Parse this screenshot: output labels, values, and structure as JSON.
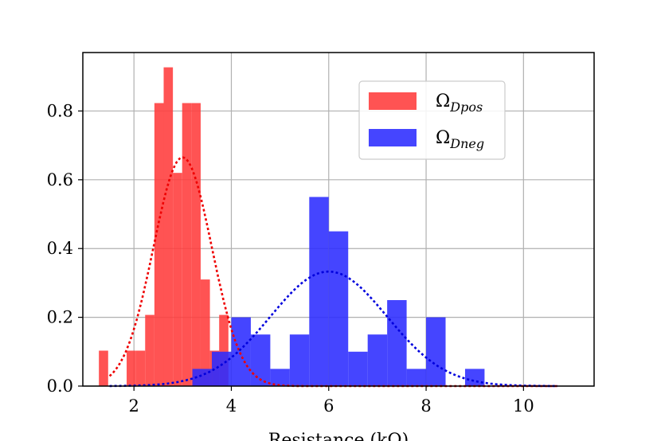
{
  "chart_data": {
    "type": "bar",
    "xlabel": "Resistance (kΩ)",
    "xlim": [
      0.95,
      11.45
    ],
    "ylim": [
      0,
      0.97
    ],
    "xticks": [
      2,
      4,
      6,
      8,
      10
    ],
    "yticks": [
      0.0,
      0.2,
      0.4,
      0.6,
      0.8
    ],
    "grid": true,
    "legend_position": "upper-right",
    "series": [
      {
        "name": "Ω_Dpos",
        "legend_main": "Ω",
        "legend_sub": "Dpos",
        "kind": "histogram",
        "color": "#ff3b3b",
        "bin_width": 0.19,
        "bins": [
          {
            "x0": 1.28,
            "height": 0.103
          },
          {
            "x0": 1.85,
            "height": 0.103
          },
          {
            "x0": 2.04,
            "height": 0.103
          },
          {
            "x0": 2.23,
            "height": 0.207
          },
          {
            "x0": 2.42,
            "height": 0.823
          },
          {
            "x0": 2.61,
            "height": 0.927
          },
          {
            "x0": 2.8,
            "height": 0.62
          },
          {
            "x0": 2.99,
            "height": 0.823
          },
          {
            "x0": 3.18,
            "height": 0.823
          },
          {
            "x0": 3.37,
            "height": 0.31
          },
          {
            "x0": 3.56,
            "height": 0.103
          },
          {
            "x0": 3.75,
            "height": 0.207
          }
        ],
        "fit_curve": {
          "style": "dotted",
          "mean": 3.0,
          "std": 0.6,
          "peak": 0.665,
          "x_range": [
            1.5,
            10.7
          ]
        }
      },
      {
        "name": "Ω_Dneg",
        "legend_main": "Ω",
        "legend_sub": "Dneg",
        "kind": "histogram",
        "color": "#2b2bff",
        "bin_width": 0.4,
        "bins": [
          {
            "x0": 3.2,
            "height": 0.05
          },
          {
            "x0": 3.6,
            "height": 0.1
          },
          {
            "x0": 4.0,
            "height": 0.2
          },
          {
            "x0": 4.4,
            "height": 0.15
          },
          {
            "x0": 4.8,
            "height": 0.05
          },
          {
            "x0": 5.2,
            "height": 0.15
          },
          {
            "x0": 5.6,
            "height": 0.55
          },
          {
            "x0": 6.0,
            "height": 0.45
          },
          {
            "x0": 6.4,
            "height": 0.1
          },
          {
            "x0": 6.8,
            "height": 0.15
          },
          {
            "x0": 7.2,
            "height": 0.25
          },
          {
            "x0": 7.6,
            "height": 0.05
          },
          {
            "x0": 8.0,
            "height": 0.2
          },
          {
            "x0": 8.8,
            "height": 0.05
          }
        ],
        "fit_curve": {
          "style": "dotted",
          "mean": 6.0,
          "std": 1.2,
          "peak": 0.333,
          "x_range": [
            1.5,
            10.7
          ]
        }
      }
    ]
  }
}
